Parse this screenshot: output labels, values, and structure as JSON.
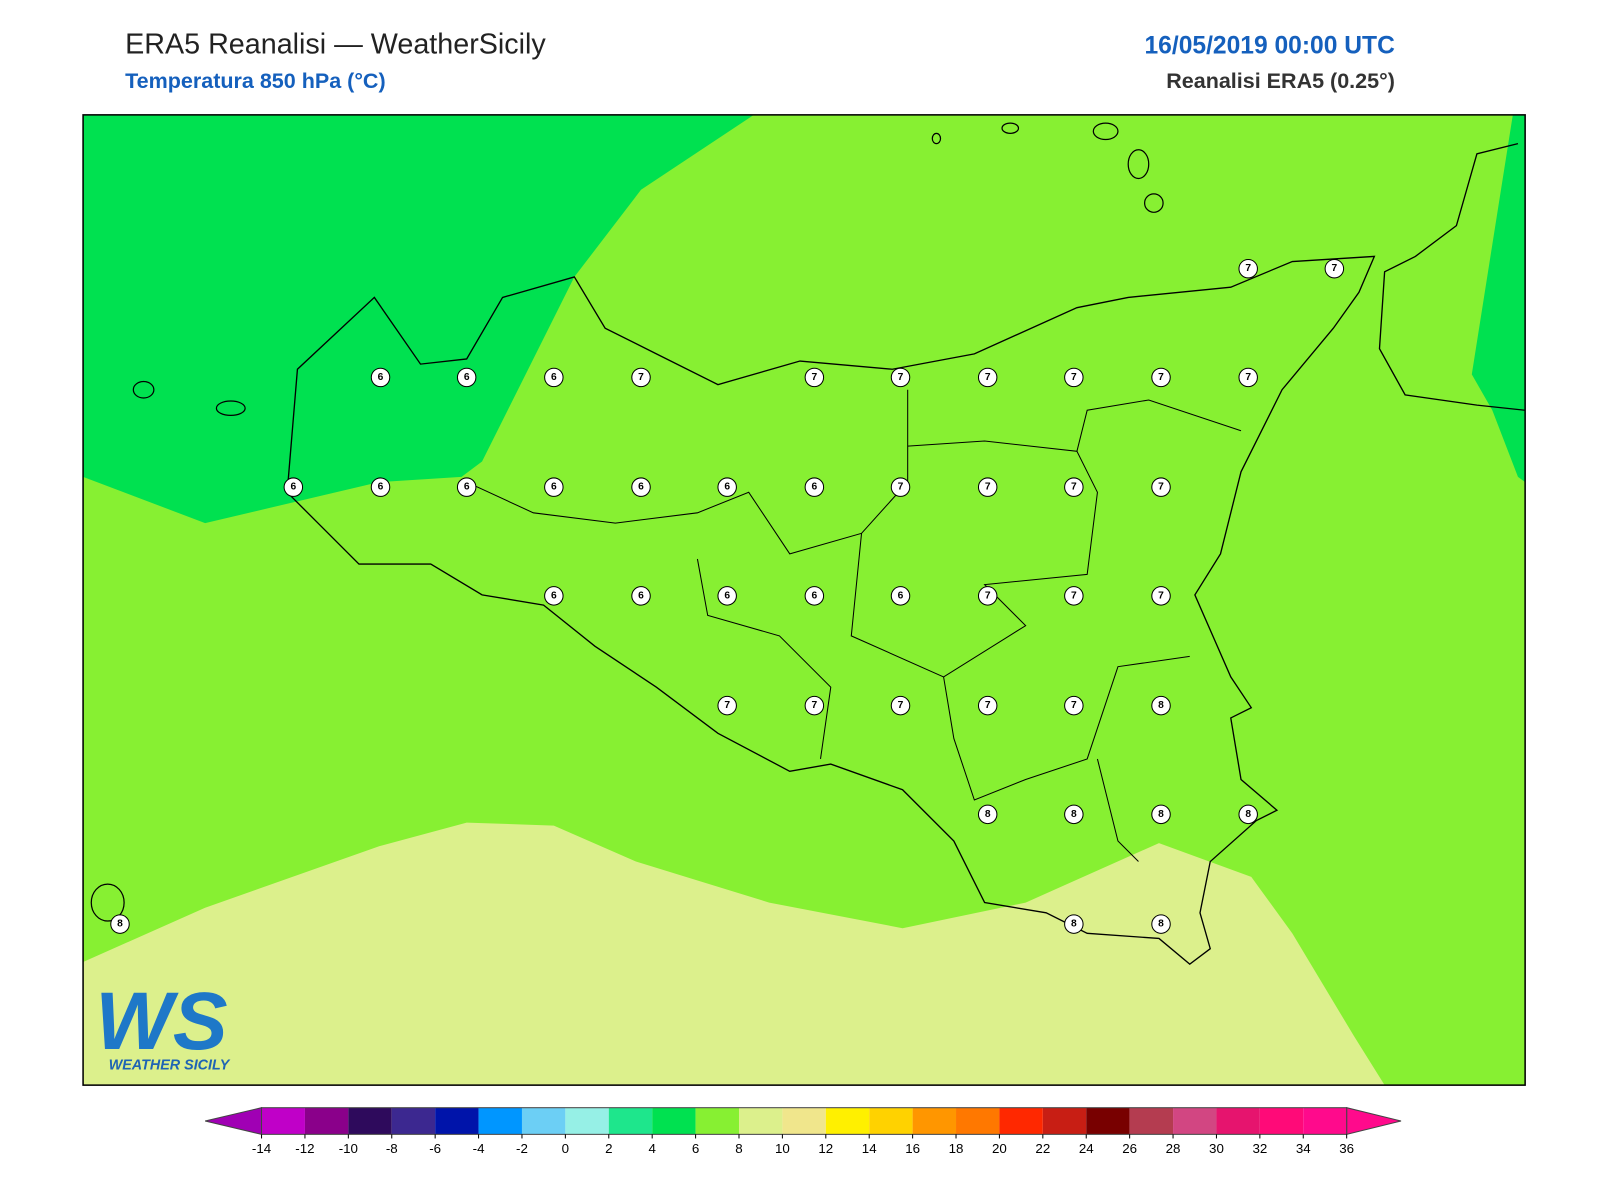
{
  "header": {
    "title": "ERA5 Reanalisi — WeatherSicily",
    "subtitle": "Temperatura 850 hPa (°C)",
    "datetime": "16/05/2019 00:00 UTC",
    "model": "Reanalisi ERA5 (0.25°)"
  },
  "stations": {
    "values": [
      6,
      6,
      6,
      7,
      7,
      7,
      7,
      7,
      7,
      7,
      7,
      7,
      6,
      6,
      6,
      6,
      6,
      6,
      6,
      7,
      7,
      7,
      7,
      6,
      6,
      6,
      6,
      6,
      7,
      7,
      7,
      7,
      7,
      7,
      7,
      7,
      8,
      8,
      8,
      8,
      8,
      8,
      8,
      8
    ]
  },
  "colorbar": {
    "ticks": [
      -14,
      -12,
      -10,
      -8,
      -6,
      -4,
      -2,
      0,
      2,
      4,
      6,
      8,
      10,
      12,
      14,
      16,
      18,
      20,
      22,
      24,
      26,
      28,
      30,
      32,
      34,
      36
    ],
    "colors": [
      "#c000c8",
      "#8a008a",
      "#2e0a5c",
      "#3c2890",
      "#0014aa",
      "#0096ff",
      "#6ccff5",
      "#96f0e6",
      "#1ee68c",
      "#00e150",
      "#87f032",
      "#dcf08c",
      "#f0e68c",
      "#fff000",
      "#ffd200",
      "#ff9600",
      "#ff7800",
      "#ff2800",
      "#c81e14",
      "#780000",
      "#b43c50",
      "#d24682",
      "#e6146e",
      "#ff0a78",
      "#ff0a8c"
    ],
    "extend_colors": [
      "#a000b4",
      "#ff0a8c"
    ]
  },
  "logo": {
    "letters": "WS",
    "name": "WEATHER SICILY"
  }
}
